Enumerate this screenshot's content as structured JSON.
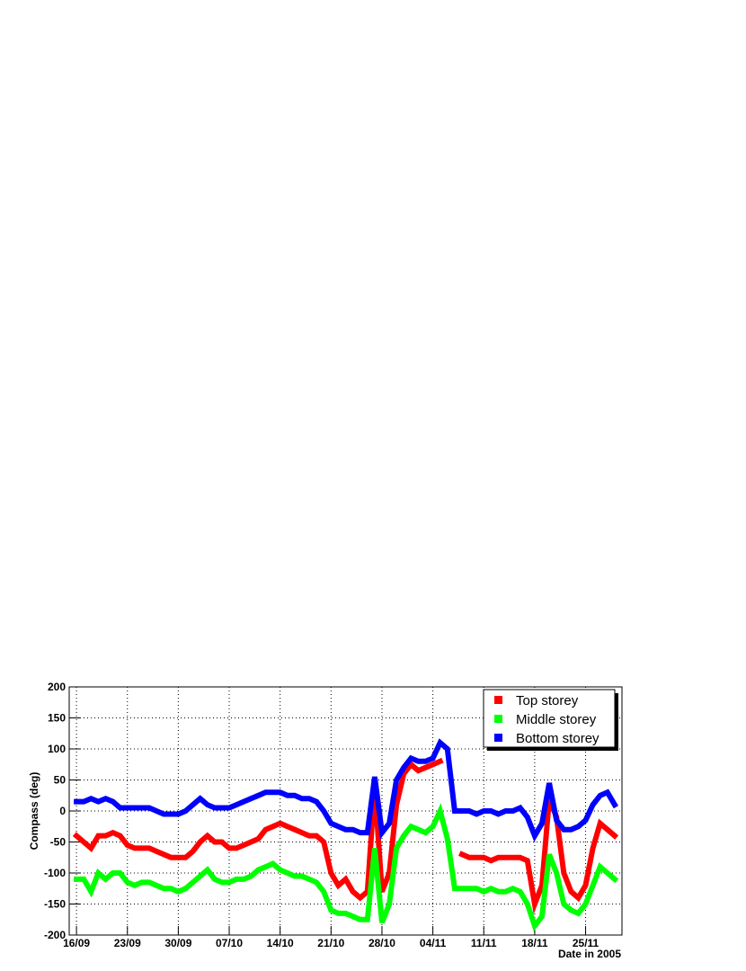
{
  "chart_data": {
    "type": "line",
    "x_label": "Date in 2005",
    "y_label": "Compass (deg)",
    "x": [
      "2005-09-16",
      "2005-09-17",
      "2005-09-18",
      "2005-09-19",
      "2005-09-20",
      "2005-09-21",
      "2005-09-22",
      "2005-09-23",
      "2005-09-24",
      "2005-09-25",
      "2005-09-26",
      "2005-09-27",
      "2005-09-28",
      "2005-09-29",
      "2005-09-30",
      "2005-10-01",
      "2005-10-02",
      "2005-10-03",
      "2005-10-04",
      "2005-10-05",
      "2005-10-06",
      "2005-10-07",
      "2005-10-08",
      "2005-10-09",
      "2005-10-10",
      "2005-10-11",
      "2005-10-12",
      "2005-10-13",
      "2005-10-14",
      "2005-10-15",
      "2005-10-16",
      "2005-10-17",
      "2005-10-18",
      "2005-10-19",
      "2005-10-20",
      "2005-10-21",
      "2005-10-22",
      "2005-10-23",
      "2005-10-24",
      "2005-10-25",
      "2005-10-26",
      "2005-10-27",
      "2005-10-28",
      "2005-10-29",
      "2005-10-30",
      "2005-10-31",
      "2005-11-01",
      "2005-11-02",
      "2005-11-03",
      "2005-11-04",
      "2005-11-05",
      "2005-11-06",
      "2005-11-07",
      "2005-11-08",
      "2005-11-09",
      "2005-11-10",
      "2005-11-11",
      "2005-11-12",
      "2005-11-13",
      "2005-11-14",
      "2005-11-15",
      "2005-11-16",
      "2005-11-17",
      "2005-11-18",
      "2005-11-19",
      "2005-11-20",
      "2005-11-21",
      "2005-11-22",
      "2005-11-23",
      "2005-11-24",
      "2005-11-25",
      "2005-11-26",
      "2005-11-27",
      "2005-11-28",
      "2005-11-29"
    ],
    "series": [
      {
        "name": "Top storey",
        "color": "#ff0000",
        "values": [
          -40,
          -50,
          -60,
          -40,
          -40,
          -35,
          -40,
          -55,
          -60,
          -60,
          -60,
          -65,
          -70,
          -75,
          -75,
          -75,
          -65,
          -50,
          -40,
          -50,
          -50,
          -60,
          -60,
          -55,
          -50,
          -45,
          -30,
          -25,
          -20,
          -25,
          -30,
          -35,
          -40,
          -40,
          -50,
          -100,
          -120,
          -110,
          -130,
          -140,
          -130,
          40,
          -130,
          -100,
          10,
          60,
          75,
          65,
          70,
          75,
          80,
          null,
          null,
          -70,
          -75,
          -75,
          -75,
          -80,
          -75,
          -75,
          -75,
          -75,
          -80,
          -150,
          -120,
          20,
          -10,
          -100,
          -130,
          -140,
          -120,
          -60,
          -20,
          -30,
          -40
        ]
      },
      {
        "name": "Middle storey",
        "color": "#00ff00",
        "values": [
          -110,
          -110,
          -130,
          -100,
          -110,
          -100,
          -100,
          -115,
          -120,
          -115,
          -115,
          -120,
          -125,
          -125,
          -130,
          -125,
          -115,
          -105,
          -95,
          -110,
          -115,
          -115,
          -110,
          -110,
          -105,
          -95,
          -90,
          -85,
          -95,
          -100,
          -105,
          -105,
          -110,
          -115,
          -130,
          -160,
          -165,
          -165,
          -170,
          -175,
          -175,
          -60,
          -180,
          -150,
          -60,
          -40,
          -25,
          -30,
          -35,
          -25,
          0,
          -45,
          -125,
          -125,
          -125,
          -125,
          -130,
          -125,
          -130,
          -130,
          -125,
          -130,
          -150,
          -185,
          -170,
          -70,
          -100,
          -150,
          -160,
          -165,
          -150,
          -120,
          -90,
          -100,
          -110
        ]
      },
      {
        "name": "Bottom storey",
        "color": "#0000ff",
        "values": [
          15,
          15,
          20,
          15,
          20,
          15,
          5,
          5,
          5,
          5,
          5,
          0,
          -5,
          -5,
          -5,
          0,
          10,
          20,
          10,
          5,
          5,
          5,
          10,
          15,
          20,
          25,
          30,
          30,
          30,
          25,
          25,
          20,
          20,
          15,
          0,
          -20,
          -25,
          -30,
          -30,
          -35,
          -35,
          55,
          -35,
          -20,
          50,
          70,
          85,
          80,
          80,
          85,
          110,
          100,
          0,
          0,
          0,
          -5,
          0,
          0,
          -5,
          0,
          0,
          5,
          -10,
          -40,
          -20,
          45,
          -15,
          -30,
          -30,
          -25,
          -15,
          10,
          25,
          30,
          10
        ]
      }
    ],
    "xlim": [
      "2005-09-15",
      "2005-11-30"
    ],
    "xticks": [
      {
        "value": "2005-09-16",
        "label": "16/09"
      },
      {
        "value": "2005-09-23",
        "label": "23/09"
      },
      {
        "value": "2005-09-30",
        "label": "30/09"
      },
      {
        "value": "2005-10-07",
        "label": "07/10"
      },
      {
        "value": "2005-10-14",
        "label": "14/10"
      },
      {
        "value": "2005-10-21",
        "label": "21/10"
      },
      {
        "value": "2005-10-28",
        "label": "28/10"
      },
      {
        "value": "2005-11-04",
        "label": "04/11"
      },
      {
        "value": "2005-11-11",
        "label": "11/11"
      },
      {
        "value": "2005-11-18",
        "label": "18/11"
      },
      {
        "value": "2005-11-25",
        "label": "25/11"
      }
    ],
    "ylim": [
      -200,
      200
    ],
    "yticks": [
      -200,
      -150,
      -100,
      -50,
      0,
      50,
      100,
      150,
      200
    ],
    "grid": true,
    "legend": "upper right"
  }
}
